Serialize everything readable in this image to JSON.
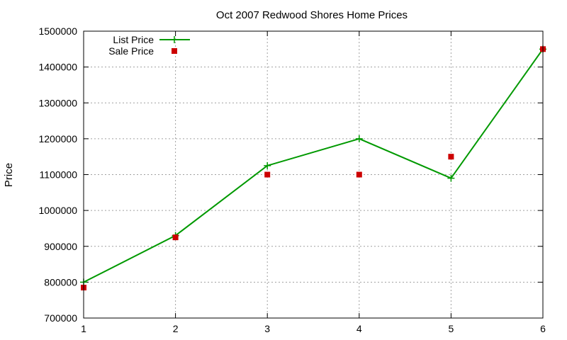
{
  "chart_data": {
    "type": "line",
    "title": "Oct 2007 Redwood Shores Home Prices",
    "xlabel": "",
    "ylabel": "Price",
    "xlim": [
      1,
      6
    ],
    "ylim": [
      700000,
      1500000
    ],
    "x_ticks": [
      1,
      2,
      3,
      4,
      5,
      6
    ],
    "y_ticks": [
      700000,
      800000,
      900000,
      1000000,
      1100000,
      1200000,
      1300000,
      1400000,
      1500000
    ],
    "grid": true,
    "legend_position": "top-left",
    "series": [
      {
        "name": "List Price",
        "style": "line+cross",
        "color": "#009900",
        "x": [
          1,
          2,
          3,
          4,
          5,
          6
        ],
        "y": [
          800000,
          930000,
          1125000,
          1200000,
          1090000,
          1450000
        ]
      },
      {
        "name": "Sale Price",
        "style": "square-points",
        "color": "#cc0000",
        "x": [
          1,
          2,
          3,
          4,
          5,
          6
        ],
        "y": [
          785000,
          925000,
          1100000,
          1100000,
          1150000,
          1450000
        ]
      }
    ]
  }
}
